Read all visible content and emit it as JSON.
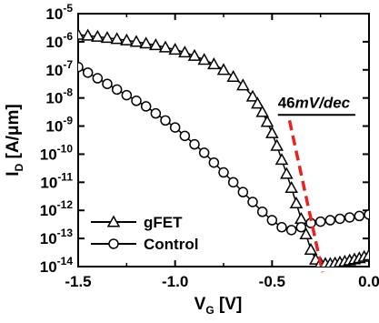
{
  "chart_data": {
    "type": "line",
    "xlabel": "V",
    "xlabel_sub": "G",
    "xlabel_unit": "[V]",
    "ylabel": "I",
    "ylabel_sub": "D",
    "ylabel_unit": "[A/μm]",
    "xlim": [
      -1.5,
      0.0
    ],
    "ylim_exp": [
      -14,
      -5
    ],
    "y_scale": "log",
    "grid": false,
    "legend_position": "bottom-left",
    "x_ticks": [
      -1.5,
      -1.0,
      -0.5,
      0.0
    ],
    "x_tick_labels": [
      "-1.5",
      "-1.0",
      "-0.5",
      "0.0"
    ],
    "y_tick_exponents": [
      -14,
      -13,
      -12,
      -11,
      -10,
      -9,
      -8,
      -7,
      -6,
      -5
    ],
    "y_tick_base": "10",
    "series": [
      {
        "name": "gFET",
        "marker": "triangle",
        "color": "#000000",
        "x": [
          -1.5,
          -1.45,
          -1.4,
          -1.35,
          -1.3,
          -1.25,
          -1.2,
          -1.15,
          -1.1,
          -1.05,
          -1.0,
          -0.95,
          -0.9,
          -0.85,
          -0.8,
          -0.75,
          -0.7,
          -0.65,
          -0.6,
          -0.575,
          -0.55,
          -0.525,
          -0.5,
          -0.475,
          -0.45,
          -0.425,
          -0.4,
          -0.375,
          -0.35,
          -0.325,
          -0.3,
          -0.275,
          -0.25,
          -0.225,
          -0.2,
          -0.175,
          -0.15,
          -0.125,
          -0.1,
          -0.075,
          -0.05,
          -0.025,
          0.0
        ],
        "log10_y": [
          -5.75,
          -5.78,
          -5.82,
          -5.86,
          -5.9,
          -5.95,
          -6.0,
          -6.06,
          -6.12,
          -6.2,
          -6.28,
          -6.38,
          -6.5,
          -6.64,
          -6.8,
          -7.0,
          -7.25,
          -7.55,
          -7.95,
          -8.2,
          -8.5,
          -8.85,
          -9.25,
          -9.7,
          -10.2,
          -10.7,
          -11.2,
          -11.75,
          -12.3,
          -12.85,
          -13.4,
          -13.75,
          -13.88,
          -13.9,
          -13.9,
          -13.88,
          -13.85,
          -13.82,
          -13.78,
          -13.74,
          -13.7,
          -13.65,
          -13.6
        ]
      },
      {
        "name": "Control",
        "marker": "circle",
        "color": "#000000",
        "x": [
          -1.5,
          -1.45,
          -1.4,
          -1.35,
          -1.3,
          -1.25,
          -1.2,
          -1.15,
          -1.1,
          -1.05,
          -1.0,
          -0.95,
          -0.9,
          -0.85,
          -0.8,
          -0.75,
          -0.7,
          -0.65,
          -0.6,
          -0.55,
          -0.5,
          -0.45,
          -0.4,
          -0.35,
          -0.3,
          -0.25,
          -0.2,
          -0.15,
          -0.1,
          -0.05,
          0.0
        ],
        "log10_y": [
          -6.9,
          -7.1,
          -7.3,
          -7.5,
          -7.7,
          -7.9,
          -8.1,
          -8.3,
          -8.55,
          -8.8,
          -9.05,
          -9.35,
          -9.65,
          -9.95,
          -10.3,
          -10.65,
          -11.0,
          -11.35,
          -11.7,
          -12.05,
          -12.35,
          -12.6,
          -12.7,
          -12.6,
          -12.45,
          -12.4,
          -12.35,
          -12.3,
          -12.25,
          -12.2,
          -12.15
        ]
      }
    ],
    "annotation": {
      "text": "46mV/dec",
      "line_color": "#e8231f",
      "line_style": "dashed",
      "line_start": {
        "x": -0.41,
        "log10_y": -8.8
      },
      "line_end": {
        "x": -0.24,
        "log10_y": -14.2
      }
    }
  }
}
